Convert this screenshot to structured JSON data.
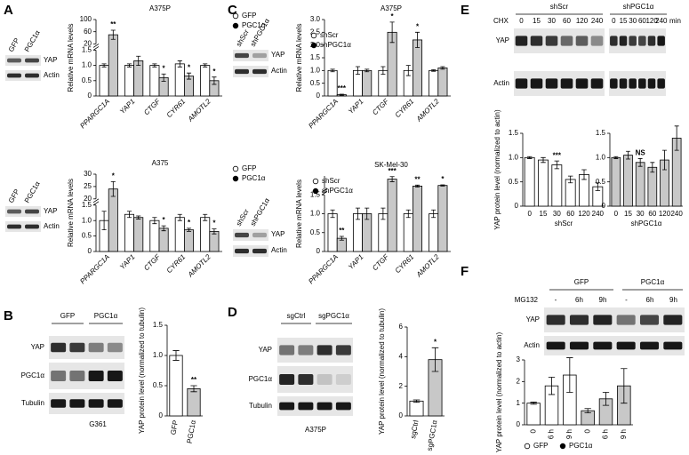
{
  "panel_labels": [
    "A",
    "B",
    "C",
    "D",
    "E",
    "F"
  ],
  "blots": [
    {
      "lanes": [
        "GFP",
        "PGC1α"
      ],
      "rows": [
        "YAP",
        "Actin"
      ]
    },
    {
      "lanes": [
        "GFP",
        "PGC1α"
      ],
      "rows": [
        "YAP",
        "Actin"
      ]
    },
    {
      "groups": [
        "GFP",
        "PGC1α"
      ],
      "rows": [
        "YAP",
        "PGC1α",
        "Tubulin"
      ],
      "caption": "G361"
    },
    {
      "lanes": [
        "shScr",
        "shPGC1α"
      ],
      "rows": [
        "YAP",
        "Actin"
      ]
    },
    {
      "lanes": [
        "shScr",
        "shPGC1α"
      ],
      "rows": [
        "YAP",
        "Actin"
      ]
    },
    {
      "groups": [
        "sgCtrl",
        "sgPGC1α"
      ],
      "rows": [
        "YAP",
        "PGC1α",
        "Tubulin"
      ],
      "caption": "A375P"
    },
    {
      "groups": [
        "shScr",
        "shPGC1α"
      ],
      "treatment": "CHX",
      "lanes": [
        "0",
        "15",
        "30",
        "60",
        "120",
        "240",
        "0",
        "15",
        "30",
        "60",
        "120",
        "240"
      ],
      "unit": "min",
      "rows": [
        "YAP",
        "Actin"
      ]
    },
    {
      "groups": [
        "GFP",
        "PGC1α"
      ],
      "treatment": "MG132",
      "lanes": [
        "-",
        "6h",
        "9h",
        "-",
        "6h",
        "9h"
      ],
      "rows": [
        "YAP",
        "Actin"
      ]
    }
  ],
  "chart_data": [
    {
      "type": "bar",
      "title": "A375P",
      "ylabel": "Relative mRNA levels",
      "categories": [
        "PPARGC1A",
        "YAP1",
        "CTGF",
        "CYR61",
        "AMOTL2"
      ],
      "series": [
        {
          "name": "GFP",
          "marker": "open",
          "color": "#ffffff",
          "values": [
            1.0,
            1.0,
            1.0,
            1.05,
            1.0
          ],
          "errors": [
            0.05,
            0.05,
            0.05,
            0.1,
            0.05
          ]
        },
        {
          "name": "PGC1α",
          "marker": "filled",
          "color": "#c8c8c8",
          "values": [
            50,
            1.15,
            0.6,
            0.65,
            0.5
          ],
          "errors": [
            15,
            0.15,
            0.12,
            0.1,
            0.12
          ]
        }
      ],
      "ylim": [
        0,
        100
      ],
      "ybreak": [
        1.5,
        20
      ],
      "yticks": [
        0,
        0.5,
        {
          "value": 1,
          "label": "1.0"
        },
        1.5,
        20,
        60,
        100
      ],
      "annotations": [
        {
          "series": 1,
          "category": 0,
          "text": "**"
        },
        {
          "series": 1,
          "category": 2,
          "text": "*"
        },
        {
          "series": 1,
          "category": 3,
          "text": "*"
        },
        {
          "series": 1,
          "category": 4,
          "text": "*"
        }
      ]
    },
    {
      "type": "bar",
      "title": "A375",
      "ylabel": "Relative mRNA levels",
      "categories": [
        "PPARGC1A",
        "YAP1",
        "CTGF",
        "CYR61",
        "AMOTL2"
      ],
      "series": [
        {
          "name": "GFP",
          "marker": "open",
          "color": "#ffffff",
          "values": [
            1.0,
            1.2,
            1.0,
            1.1,
            1.1
          ],
          "errors": [
            0.3,
            0.1,
            0.1,
            0.1,
            0.1
          ]
        },
        {
          "name": "PGC1α",
          "marker": "filled",
          "color": "#c8c8c8",
          "values": [
            24,
            1.1,
            0.75,
            0.7,
            0.65
          ],
          "errors": [
            3,
            0.05,
            0.08,
            0.05,
            0.08
          ]
        }
      ],
      "ylim": [
        0,
        30
      ],
      "ybreak": [
        1.5,
        20
      ],
      "yticks": [
        0,
        0.5,
        {
          "value": 1,
          "label": "1.0"
        },
        1.5,
        20,
        25,
        30
      ],
      "annotations": [
        {
          "series": 1,
          "category": 0,
          "text": "*"
        },
        {
          "series": 1,
          "category": 2,
          "text": "*"
        },
        {
          "series": 1,
          "category": 3,
          "text": "*"
        },
        {
          "series": 1,
          "category": 4,
          "text": "*"
        }
      ]
    },
    {
      "type": "bar",
      "ylabel": "YAP protein level (normalized to tubulin)",
      "categories": [
        "GFP",
        "PGC1α"
      ],
      "values": [
        1.0,
        0.45
      ],
      "errors": [
        0.08,
        0.05
      ],
      "colors": [
        "#ffffff",
        "#c8c8c8"
      ],
      "ylim": [
        0,
        1.5
      ],
      "yticks": [
        0,
        0.5,
        {
          "value": 1,
          "label": "1.0"
        },
        1.5
      ],
      "annotations": [
        {
          "category": 1,
          "text": "**"
        }
      ]
    },
    {
      "type": "bar",
      "title": "A375P",
      "ylabel": "Relative mRNA levels",
      "categories": [
        "PPARGC1A",
        "YAP1",
        "CTGF",
        "CYR61",
        "AMOTL2"
      ],
      "series": [
        {
          "name": "shScr",
          "marker": "open",
          "color": "#ffffff",
          "values": [
            1.0,
            1.0,
            1.0,
            1.0,
            1.0
          ],
          "errors": [
            0.05,
            0.15,
            0.15,
            0.2,
            0.03
          ]
        },
        {
          "name": "shPGC1α",
          "marker": "filled",
          "color": "#c8c8c8",
          "values": [
            0.05,
            1.0,
            2.5,
            2.2,
            1.1
          ],
          "errors": [
            0.02,
            0.05,
            0.4,
            0.3,
            0.05
          ]
        }
      ],
      "ylim": [
        0,
        3
      ],
      "yticks": [
        0,
        0.5,
        {
          "value": 1,
          "label": "1.0"
        },
        1.5,
        {
          "value": 2,
          "label": "2.0"
        },
        2.5,
        {
          "value": 3,
          "label": "3.0"
        }
      ],
      "annotations": [
        {
          "series": 1,
          "category": 0,
          "text": "***"
        },
        {
          "series": 1,
          "category": 2,
          "text": "*"
        },
        {
          "series": 1,
          "category": 3,
          "text": "*"
        }
      ]
    },
    {
      "type": "bar",
      "title": "SK-Mel-30",
      "ylabel": "Relative mRNA levels",
      "categories": [
        "PPARGC1A",
        "YAP1",
        "CTGF",
        "CYR61",
        "AMOTL2"
      ],
      "series": [
        {
          "name": "shScr",
          "marker": "open",
          "color": "#ffffff",
          "values": [
            1.0,
            1.0,
            1.0,
            1.0,
            1.0
          ],
          "errors": [
            0.1,
            0.15,
            0.15,
            0.1,
            0.1
          ]
        },
        {
          "name": "shPGC1α",
          "marker": "filled",
          "color": "#c8c8c8",
          "values": [
            0.35,
            1.0,
            5.0,
            2.8,
            3.0
          ],
          "errors": [
            0.05,
            0.15,
            0.8,
            0.3,
            0.2
          ]
        }
      ],
      "ylim": [
        0,
        6
      ],
      "ybreak": [
        1.5,
        2
      ],
      "yticks": [
        0,
        0.5,
        {
          "value": 1,
          "label": "1.0"
        },
        1.5
      ],
      "annotations": [
        {
          "series": 1,
          "category": 0,
          "text": "**"
        },
        {
          "series": 1,
          "category": 2,
          "text": "***"
        },
        {
          "series": 1,
          "category": 3,
          "text": "**"
        },
        {
          "series": 1,
          "category": 4,
          "text": "*"
        }
      ]
    },
    {
      "type": "bar",
      "ylabel": "YAP protein level (normalized to tubulin)",
      "categories": [
        "sgCtrl",
        "sgPGC1α"
      ],
      "values": [
        1.0,
        3.8
      ],
      "errors": [
        0.08,
        0.8
      ],
      "colors": [
        "#ffffff",
        "#c8c8c8"
      ],
      "ylim": [
        0,
        6
      ],
      "yticks": [
        0,
        2,
        4,
        6
      ],
      "annotations": [
        {
          "category": 1,
          "text": "*"
        }
      ]
    },
    {
      "type": "bar",
      "ylabel": "YAP protein level (normalized to actin)",
      "xlabel": "shScr",
      "categories": [
        "0",
        "15",
        "30",
        "60",
        "120",
        "240"
      ],
      "values": [
        1.0,
        0.95,
        0.85,
        0.55,
        0.65,
        0.4
      ],
      "errors": [
        0.02,
        0.05,
        0.08,
        0.07,
        0.1,
        0.08
      ],
      "color": "#ffffff",
      "ylim": [
        0,
        1.5
      ],
      "yticks": [
        0,
        0.5,
        {
          "value": 1,
          "label": "1.0"
        },
        1.5
      ],
      "annotations": [
        {
          "category": 2,
          "text": "***"
        }
      ]
    },
    {
      "type": "bar",
      "xlabel": "shPGC1α",
      "categories": [
        "0",
        "15",
        "30",
        "60",
        "120",
        "240"
      ],
      "values": [
        1.0,
        1.05,
        0.9,
        0.8,
        0.95,
        1.4
      ],
      "errors": [
        0.02,
        0.08,
        0.08,
        0.1,
        0.2,
        0.25
      ],
      "color": "#c8c8c8",
      "ylim": [
        0,
        1.5
      ],
      "yticks": [
        0,
        0.5,
        {
          "value": 1,
          "label": "1.0"
        },
        1.5
      ],
      "annotations": [
        {
          "category": 2,
          "text": "NS"
        }
      ]
    },
    {
      "type": "bar",
      "ylabel": "YAP protein level (normalized to actin)",
      "categories": [
        "0",
        "6 h",
        "9 h",
        "0",
        "6 h",
        "9 h"
      ],
      "values": [
        1.0,
        1.8,
        2.3,
        0.65,
        1.2,
        1.8
      ],
      "errors": [
        0.05,
        0.4,
        0.8,
        0.1,
        0.3,
        0.8
      ],
      "colors": [
        "#ffffff",
        "#ffffff",
        "#ffffff",
        "#c8c8c8",
        "#c8c8c8",
        "#c8c8c8"
      ],
      "ylim": [
        0,
        3
      ],
      "yticks": [
        0,
        1,
        2,
        3
      ],
      "legend_items": [
        {
          "name": "GFP",
          "marker": "open"
        },
        {
          "name": "PGC1α",
          "marker": "filled"
        }
      ]
    }
  ]
}
